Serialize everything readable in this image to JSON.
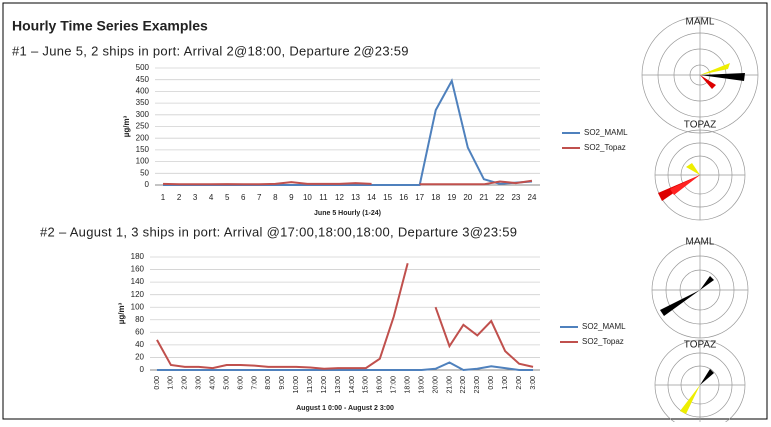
{
  "title": "Hourly Time Series Examples",
  "wind_roses": [
    "MAML",
    "TOPAZ",
    "MAML",
    "TOPAZ"
  ],
  "chart_data": [
    {
      "type": "line",
      "title": "#1 – June 5, 2 ships in port: Arrival 2@18:00, Departure 2@23:59",
      "y_label": "µg/m³",
      "x_label": "June 5 Hourly (1-24)",
      "categories": [
        1,
        2,
        3,
        4,
        5,
        6,
        7,
        8,
        9,
        10,
        11,
        12,
        13,
        14,
        15,
        16,
        17,
        18,
        19,
        20,
        21,
        22,
        23,
        24
      ],
      "ylim": [
        0,
        500
      ],
      "yticks": [
        0,
        50,
        100,
        150,
        200,
        250,
        300,
        350,
        400,
        450,
        500
      ],
      "grid": true,
      "series": [
        {
          "name": "SO2_MAML",
          "color": "#4f81bd",
          "values": [
            0,
            0,
            0,
            0,
            0,
            0,
            0,
            0,
            0,
            0,
            0,
            0,
            0,
            0,
            0,
            0,
            0,
            320,
            445,
            160,
            25,
            5,
            10,
            15
          ]
        },
        {
          "name": "SO2_Topaz",
          "color": "#c0504d",
          "values": [
            5,
            3,
            3,
            3,
            4,
            3,
            3,
            5,
            12,
            5,
            5,
            5,
            8,
            5,
            null,
            null,
            3,
            3,
            3,
            3,
            3,
            15,
            8,
            18
          ]
        }
      ]
    },
    {
      "type": "line",
      "title": "#2 – August 1, 3 ships in port: Arrival @17:00,18:00,18:00, Departure 3@23:59",
      "y_label": "µg/m³",
      "x_label": "August 1 0:00 - August 2 3:00",
      "categories": [
        "0:00",
        "1:00",
        "2:00",
        "3:00",
        "4:00",
        "5:00",
        "6:00",
        "7:00",
        "8:00",
        "9:00",
        "10:00",
        "11:00",
        "12:00",
        "13:00",
        "14:00",
        "15:00",
        "16:00",
        "17:00",
        "18:00",
        "19:00",
        "20:00",
        "21:00",
        "22:00",
        "23:00",
        "0:00",
        "1:00",
        "2:00",
        "3:00"
      ],
      "ylim": [
        0,
        180
      ],
      "yticks": [
        0,
        20,
        40,
        60,
        80,
        100,
        120,
        140,
        160,
        180
      ],
      "grid": true,
      "series": [
        {
          "name": "SO2_MAML",
          "color": "#4f81bd",
          "values": [
            0,
            0,
            0,
            0,
            0,
            0,
            0,
            0,
            0,
            0,
            0,
            0,
            0,
            0,
            0,
            0,
            0,
            0,
            0,
            0,
            2,
            12,
            0,
            2,
            6,
            3,
            0,
            0
          ]
        },
        {
          "name": "SO2_Topaz",
          "color": "#c0504d",
          "values": [
            48,
            8,
            5,
            5,
            3,
            8,
            8,
            7,
            5,
            5,
            5,
            4,
            2,
            3,
            3,
            3,
            18,
            85,
            170,
            null,
            100,
            38,
            72,
            55,
            78,
            30,
            10,
            5
          ]
        }
      ]
    }
  ]
}
